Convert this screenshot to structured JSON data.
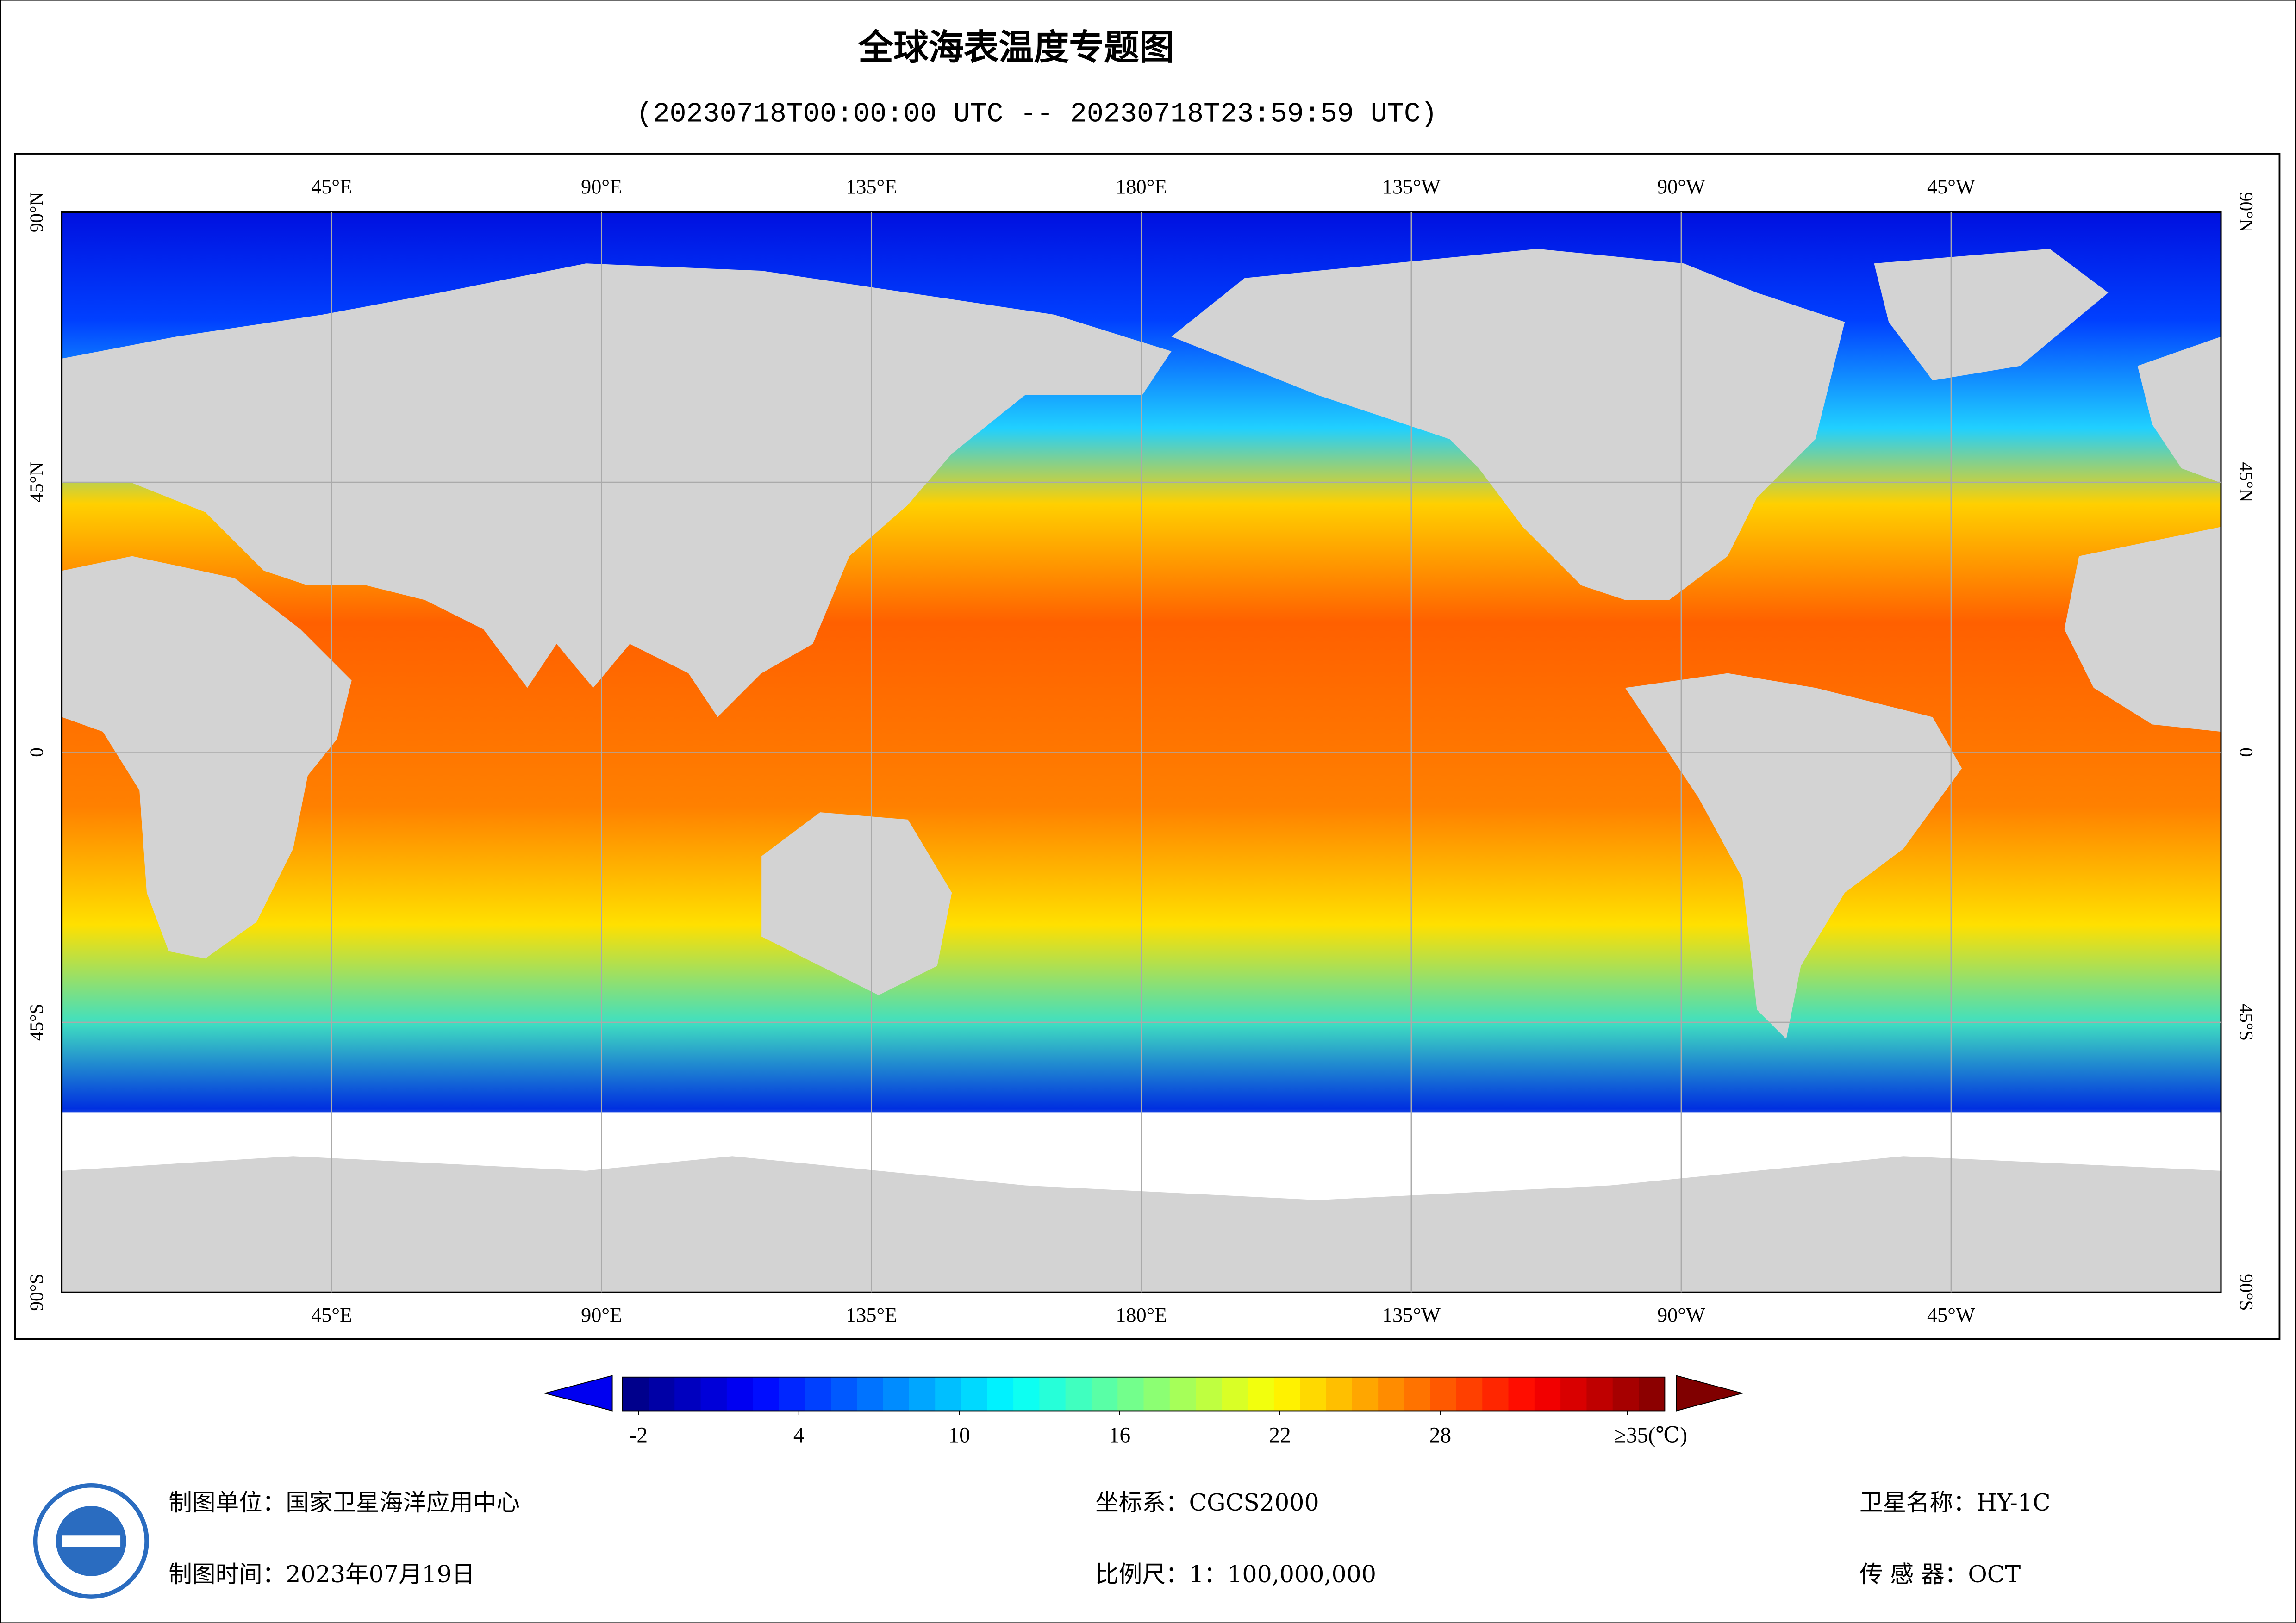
{
  "header": {
    "title": "全球海表温度专题图",
    "subtitle": "(20230718T00:00:00 UTC -- 20230718T23:59:59 UTC)"
  },
  "graticule": {
    "lon_labels": [
      "45°E",
      "90°E",
      "135°E",
      "180°E",
      "135°W",
      "90°W",
      "45°W"
    ],
    "lat_labels": [
      "90°N",
      "45°N",
      "0",
      "45°S",
      "90°S"
    ]
  },
  "colorbar": {
    "range": [
      -2.6,
      36.4
    ],
    "ticks": [
      -2,
      4,
      10,
      16,
      22,
      28,
      {
        "value": 35,
        "label": "≥35(℃)"
      }
    ]
  },
  "footer": {
    "unit": "制图单位：国家卫星海洋应用中心",
    "date": "制图时间：2023年07月19日",
    "crs": "坐标系：CGCS2000",
    "scale": "比例尺：1：100,000,000",
    "satellite": "卫星名称：HY-1C",
    "sensor": "传 感 器：OCT"
  }
}
